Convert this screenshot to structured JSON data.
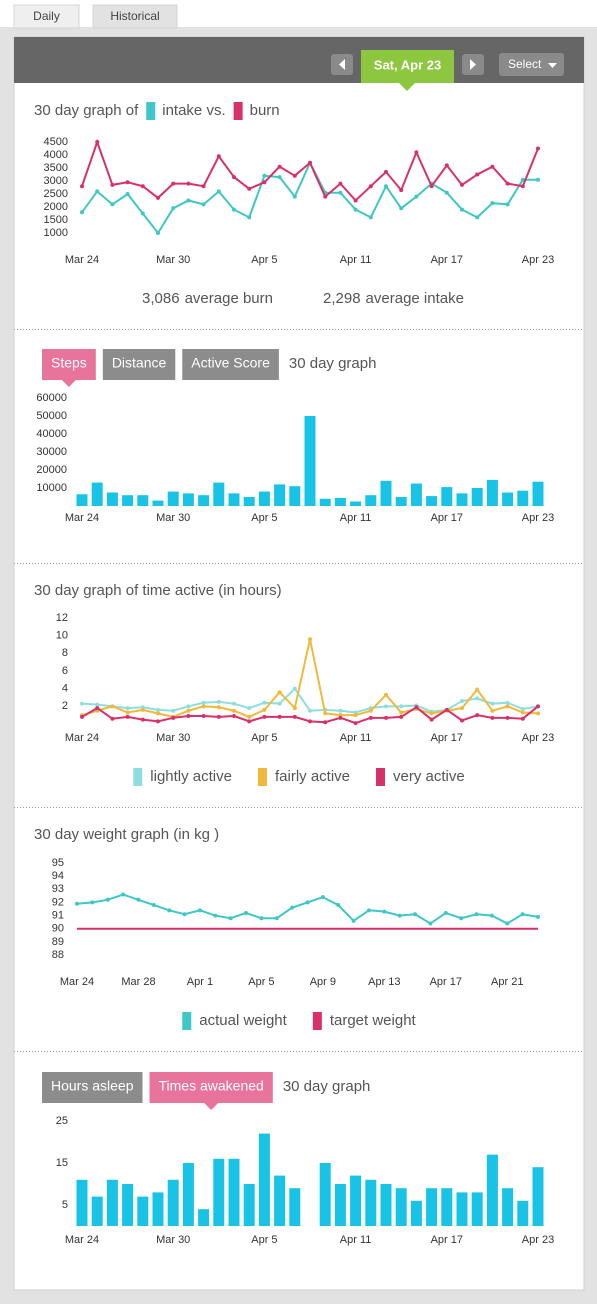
{
  "tabs": [
    {
      "label": "Daily"
    },
    {
      "label": "Historical",
      "active": true
    }
  ],
  "nav": {
    "date": "Sat, Apr 23",
    "select": "Select"
  },
  "chart_data": [
    {
      "type": "line",
      "title": "30 day graph of",
      "legend": "inline-title",
      "categories": [
        "Mar 24",
        null,
        null,
        null,
        null,
        null,
        "Mar 30",
        null,
        null,
        null,
        null,
        null,
        "Apr 5",
        null,
        null,
        null,
        null,
        null,
        "Apr 11",
        null,
        null,
        null,
        null,
        null,
        "Apr 17",
        null,
        null,
        null,
        null,
        null,
        "Apr 23"
      ],
      "series": [
        {
          "name": "intake vs.",
          "color": "#3fc6c6",
          "markers": true,
          "values": [
            1800,
            2600,
            2100,
            2500,
            1750,
            1000,
            1950,
            2250,
            2100,
            2600,
            1900,
            1600,
            3200,
            3150,
            2400,
            3700,
            2550,
            2550,
            1900,
            1600,
            2800,
            1950,
            2400,
            2900,
            2550,
            1900,
            1600,
            2150,
            2100,
            3050,
            3050
          ]
        },
        {
          "name": "burn",
          "color": "#d9306a",
          "markers": true,
          "values": [
            2800,
            4500,
            2850,
            2950,
            2800,
            2350,
            2900,
            2900,
            2800,
            3950,
            3150,
            2700,
            2950,
            3550,
            3200,
            3700,
            2400,
            2900,
            2250,
            2800,
            3350,
            2650,
            4100,
            2800,
            3600,
            2850,
            3250,
            3550,
            2900,
            2800,
            4250
          ]
        }
      ],
      "ylim": [
        1000,
        4500
      ],
      "yticks": [
        1000,
        1500,
        2000,
        2500,
        3000,
        3500,
        4000,
        4500
      ],
      "summary": [
        {
          "amount": "3,086",
          "text": "average burn",
          "color": "#d9306a"
        },
        {
          "amount": "2,298",
          "text": "average intake",
          "color": "#3fc6c6"
        }
      ]
    },
    {
      "type": "bar",
      "buttons": [
        {
          "label": "Steps",
          "active": true
        },
        {
          "label": "Distance"
        },
        {
          "label": "Active Score"
        }
      ],
      "title": "30 day graph",
      "categories": [
        "Mar 24",
        null,
        null,
        null,
        null,
        null,
        "Mar 30",
        null,
        null,
        null,
        null,
        null,
        "Apr 5",
        null,
        null,
        null,
        null,
        null,
        "Apr 11",
        null,
        null,
        null,
        null,
        null,
        "Apr 17",
        null,
        null,
        null,
        null,
        null,
        "Apr 23"
      ],
      "values": [
        6500,
        13000,
        7500,
        6000,
        6000,
        3000,
        8000,
        7000,
        6000,
        13000,
        7000,
        5000,
        8000,
        12000,
        11000,
        50000,
        4000,
        4500,
        2500,
        6000,
        14000,
        5000,
        12500,
        5500,
        10500,
        7000,
        10000,
        14500,
        7500,
        8500,
        13500
      ],
      "color": "#19c3e6",
      "ylim": [
        0,
        60000
      ],
      "yticks": [
        10000,
        20000,
        30000,
        40000,
        50000,
        60000
      ]
    },
    {
      "type": "line",
      "title": "30 day graph of time active (in hours)",
      "legend": "bottom",
      "categories": [
        "Mar 24",
        null,
        null,
        null,
        null,
        null,
        "Mar 30",
        null,
        null,
        null,
        null,
        null,
        "Apr 5",
        null,
        null,
        null,
        null,
        null,
        "Apr 11",
        null,
        null,
        null,
        null,
        null,
        "Apr 17",
        null,
        null,
        null,
        null,
        null,
        "Apr 23"
      ],
      "series": [
        {
          "name": "lightly active",
          "color": "#8fdede",
          "markers": true,
          "values": [
            2.3,
            2.2,
            2.0,
            1.8,
            1.9,
            1.6,
            1.5,
            2.0,
            2.4,
            2.5,
            2.3,
            1.8,
            2.4,
            2.3,
            4.0,
            1.5,
            1.6,
            1.5,
            1.3,
            1.8,
            2.0,
            2.0,
            2.1,
            1.4,
            1.6,
            2.6,
            2.9,
            2.3,
            2.4,
            1.7,
            2.0
          ]
        },
        {
          "name": "fairly active",
          "color": "#f0b93c",
          "markers": true,
          "values": [
            1.0,
            1.5,
            2.0,
            1.3,
            1.6,
            1.2,
            0.8,
            1.5,
            2.0,
            1.9,
            1.5,
            0.8,
            1.6,
            3.6,
            1.8,
            9.6,
            1.2,
            1.0,
            1.0,
            1.5,
            3.3,
            1.3,
            1.7,
            1.2,
            1.5,
            1.8,
            3.9,
            1.5,
            2.0,
            1.3,
            1.2
          ]
        },
        {
          "name": "very active",
          "color": "#d9306a",
          "markers": true,
          "values": [
            0.8,
            1.8,
            0.6,
            0.8,
            0.5,
            0.3,
            0.7,
            0.9,
            0.9,
            0.8,
            0.9,
            0.3,
            0.8,
            0.8,
            0.8,
            0.3,
            0.2,
            0.7,
            0.1,
            0.7,
            0.7,
            0.8,
            1.9,
            0.5,
            1.6,
            0.4,
            1.0,
            0.7,
            0.7,
            0.6,
            2.0
          ]
        }
      ],
      "ylim": [
        0,
        12
      ],
      "yticks": [
        2,
        4,
        6,
        8,
        10,
        12
      ]
    },
    {
      "type": "line",
      "title": "30 day weight graph (in kg )",
      "legend": "bottom",
      "categories": [
        "Mar 24",
        null,
        null,
        null,
        "Mar 28",
        null,
        null,
        null,
        "Apr 1",
        null,
        null,
        null,
        "Apr 5",
        null,
        null,
        null,
        "Apr 9",
        null,
        null,
        null,
        "Apr 13",
        null,
        null,
        null,
        "Apr 17",
        null,
        null,
        null,
        "Apr 21",
        null,
        null
      ],
      "series": [
        {
          "name": "actual weight",
          "color": "#3fc6c6",
          "markers": true,
          "values": [
            91.9,
            92.0,
            92.2,
            92.6,
            92.2,
            91.8,
            91.4,
            91.1,
            91.4,
            91.0,
            90.8,
            91.2,
            90.8,
            90.8,
            91.6,
            92.0,
            92.4,
            91.8,
            90.6,
            91.4,
            91.3,
            91.0,
            91.1,
            90.4,
            91.2,
            90.8,
            91.1,
            91.0,
            90.4,
            91.1,
            90.9
          ]
        },
        {
          "name": "target weight",
          "color": "#d9306a",
          "markers": false,
          "values": [
            90,
            90,
            90,
            90,
            90,
            90,
            90,
            90,
            90,
            90,
            90,
            90,
            90,
            90,
            90,
            90,
            90,
            90,
            90,
            90,
            90,
            90,
            90,
            90,
            90,
            90,
            90,
            90,
            90,
            90,
            90
          ]
        }
      ],
      "ylim": [
        88,
        95
      ],
      "yticks": [
        88,
        89,
        90,
        91,
        92,
        93,
        94,
        95
      ]
    },
    {
      "type": "bar",
      "buttons": [
        {
          "label": "Hours asleep"
        },
        {
          "label": "Times awakened",
          "active": true
        }
      ],
      "title": "30 day graph",
      "categories": [
        "Mar 24",
        null,
        null,
        null,
        null,
        null,
        "Mar 30",
        null,
        null,
        null,
        null,
        null,
        "Apr 5",
        null,
        null,
        null,
        null,
        null,
        "Apr 11",
        null,
        null,
        null,
        null,
        null,
        "Apr 17",
        null,
        null,
        null,
        null,
        null,
        "Apr 23"
      ],
      "values": [
        11,
        7,
        11,
        10,
        7,
        8,
        11,
        15,
        4,
        16,
        16,
        10,
        22,
        12,
        9,
        null,
        15,
        10,
        12,
        11,
        10,
        9,
        6,
        9,
        9,
        8,
        8,
        17,
        9,
        6,
        14
      ],
      "color": "#19c3e6",
      "ylim": [
        0,
        25
      ],
      "yticks": [
        5,
        15,
        25
      ]
    }
  ]
}
